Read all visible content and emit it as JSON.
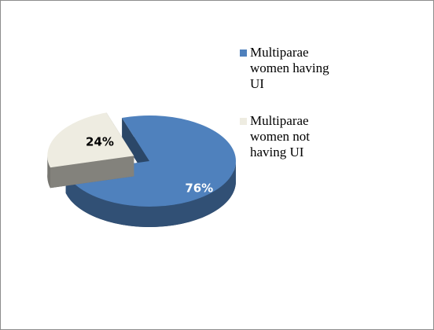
{
  "chart_data": {
    "type": "pie",
    "categories": [
      "Multiparae women having UI",
      "Multiparae women not having UI"
    ],
    "values": [
      76,
      24
    ],
    "value_labels": [
      "76%",
      "24%"
    ],
    "colors": [
      "#4f81bd",
      "#eeece1"
    ],
    "legend": "right"
  }
}
